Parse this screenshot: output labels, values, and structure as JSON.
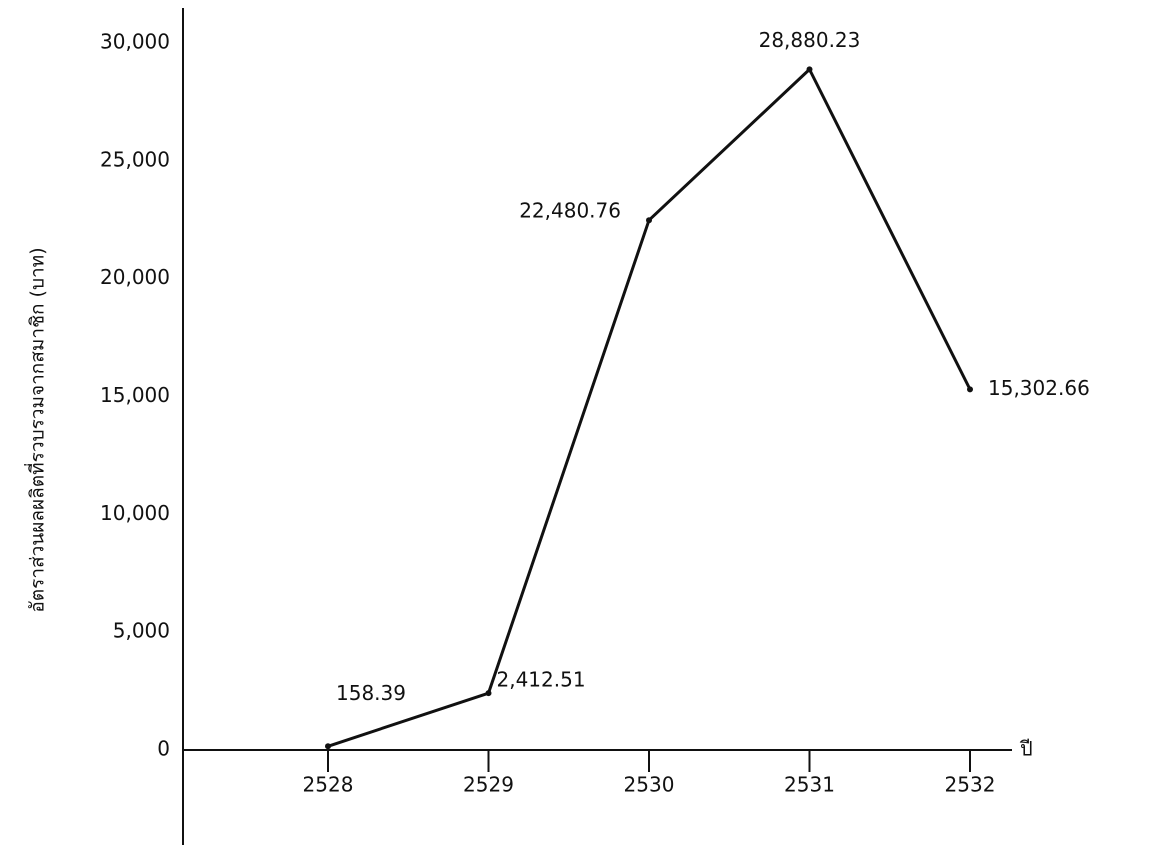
{
  "chart_data": {
    "type": "line",
    "y_label": "อัตราส่วนผลผลิตที่รวบรวมจากสมาชิก (บาท)",
    "x_label": "ปี",
    "categories": [
      "2528",
      "2529",
      "2530",
      "2531",
      "2532"
    ],
    "values": [
      158.39,
      2412.51,
      22480.76,
      28880.23,
      15302.66
    ],
    "value_labels": [
      "158.39",
      "2,412.51",
      "22,480.76",
      "28,880.23",
      "15,302.66"
    ],
    "color": "#111111",
    "ylim": [
      0,
      30000
    ],
    "yticks": [
      0,
      {
        "value": 5000,
        "label": "5,000"
      },
      {
        "value": 10000,
        "label": "10,000"
      },
      {
        "value": 15000,
        "label": "15,000"
      },
      {
        "value": 20000,
        "label": "20,000"
      },
      {
        "value": 25000,
        "label": "25,000"
      },
      {
        "value": 30000,
        "label": "30,000"
      }
    ],
    "grid": false
  }
}
